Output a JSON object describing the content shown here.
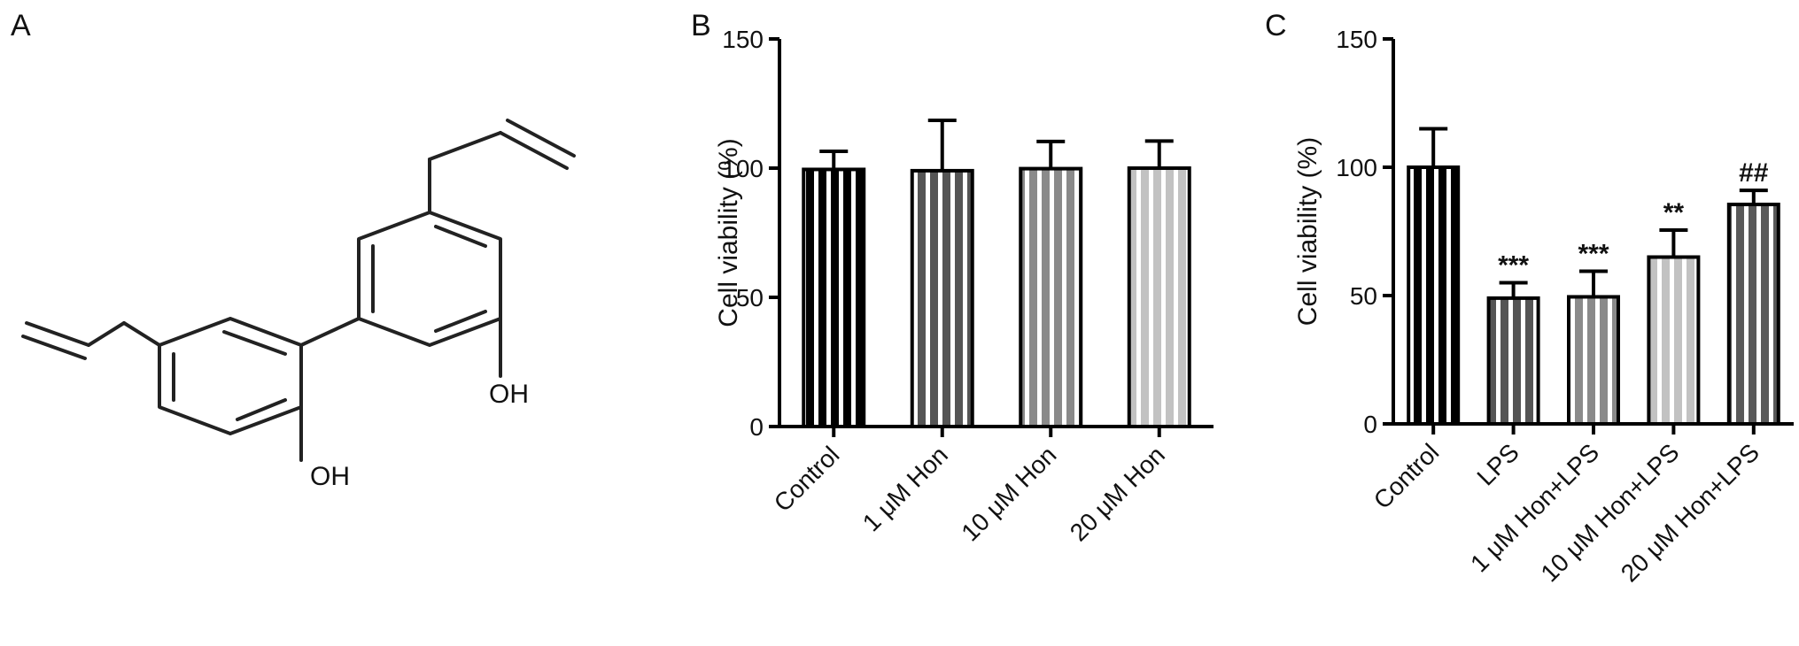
{
  "panels": {
    "a": {
      "letter": "A",
      "atoms": [
        "OH",
        "OH"
      ]
    },
    "b": {
      "letter": "B"
    },
    "c": {
      "letter": "C"
    }
  },
  "chart_data": [
    {
      "id": "panel-b",
      "type": "bar",
      "ylabel": "Cell viability (%)",
      "xlabel": "",
      "ylim": [
        0,
        150
      ],
      "yticks": [
        0,
        50,
        100,
        150
      ],
      "categories": [
        "Control",
        "1 μM Hon",
        "10 μM Hon",
        "20 μM Hon"
      ],
      "values": [
        99.5,
        99.0,
        99.8,
        100.0
      ],
      "errors": [
        7.0,
        19.5,
        10.5,
        10.5
      ],
      "significance": [
        "",
        "",
        "",
        ""
      ],
      "colors": [
        "#000000",
        "#555555",
        "#8a8a8a",
        "#c2c2c2"
      ],
      "grid": false
    },
    {
      "id": "panel-c",
      "type": "bar",
      "ylabel": "Cell viability (%)",
      "xlabel": "",
      "ylim": [
        0,
        150
      ],
      "yticks": [
        0,
        50,
        100,
        150
      ],
      "categories": [
        "Control",
        "LPS",
        "1 μM Hon+LPS",
        "10 μM Hon+LPS",
        "20 μM Hon+LPS"
      ],
      "values": [
        100.0,
        49.0,
        49.5,
        65.0,
        85.5
      ],
      "errors": [
        15.0,
        6.0,
        10.0,
        10.5,
        5.5
      ],
      "significance": [
        "",
        "***",
        "***",
        "**",
        "##"
      ],
      "colors": [
        "#000000",
        "#555555",
        "#8a8a8a",
        "#c2c2c2",
        "#5a5a5a"
      ],
      "grid": false
    }
  ]
}
